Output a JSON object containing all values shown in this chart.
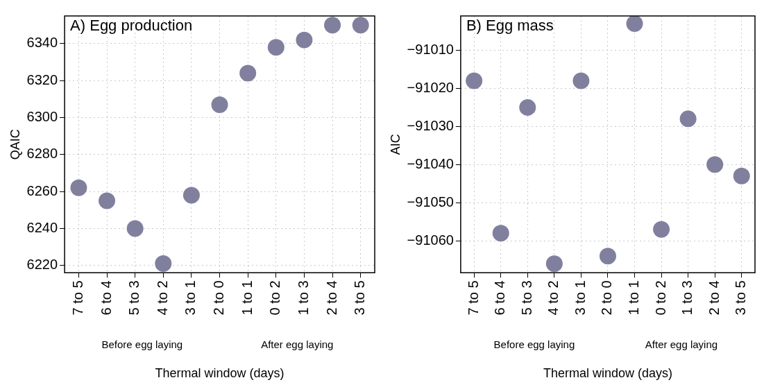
{
  "chart_data": [
    {
      "type": "scatter",
      "title": "A) Egg production",
      "xlabel": "Thermal window (days)",
      "ylabel": "QAIC",
      "categories": [
        "7 to 5",
        "6 to 4",
        "5 to 3",
        "4 to 2",
        "3 to 1",
        "2 to 0",
        "1 to 1",
        "0 to 2",
        "1 to 3",
        "2 to 4",
        "3 to 5"
      ],
      "series": [
        {
          "color": "#80809e",
          "values": [
            6262,
            6255,
            6240,
            6221,
            6258,
            6307,
            6324,
            6338,
            6342,
            6350,
            6350
          ]
        }
      ],
      "ylim": [
        6216,
        6355
      ],
      "yticks": [
        6220,
        6240,
        6260,
        6280,
        6300,
        6320,
        6340
      ],
      "grid": true,
      "marker": "circle",
      "annotations": [
        "Before egg laying",
        "After egg laying"
      ]
    },
    {
      "type": "scatter",
      "title": "B) Egg mass",
      "xlabel": "Thermal window (days)",
      "ylabel": "AIC",
      "categories": [
        "7 to 5",
        "6 to 4",
        "5 to 3",
        "4 to 2",
        "3 to 1",
        "2 to 0",
        "1 to 1",
        "0 to 2",
        "1 to 3",
        "2 to 4",
        "3 to 5"
      ],
      "series": [
        {
          "color": "#80809e",
          "values": [
            -91018,
            -91058,
            -91025,
            -91066,
            -91018,
            -91064,
            -91003,
            -91057,
            -91028,
            -91040,
            -91043
          ]
        }
      ],
      "ylim": [
        -91068.4,
        -91001
      ],
      "yticks": [
        -91060,
        -91050,
        -91040,
        -91030,
        -91020,
        -91010
      ],
      "grid": true,
      "marker": "circle",
      "annotations": [
        "Before egg laying",
        "After egg laying"
      ]
    }
  ]
}
